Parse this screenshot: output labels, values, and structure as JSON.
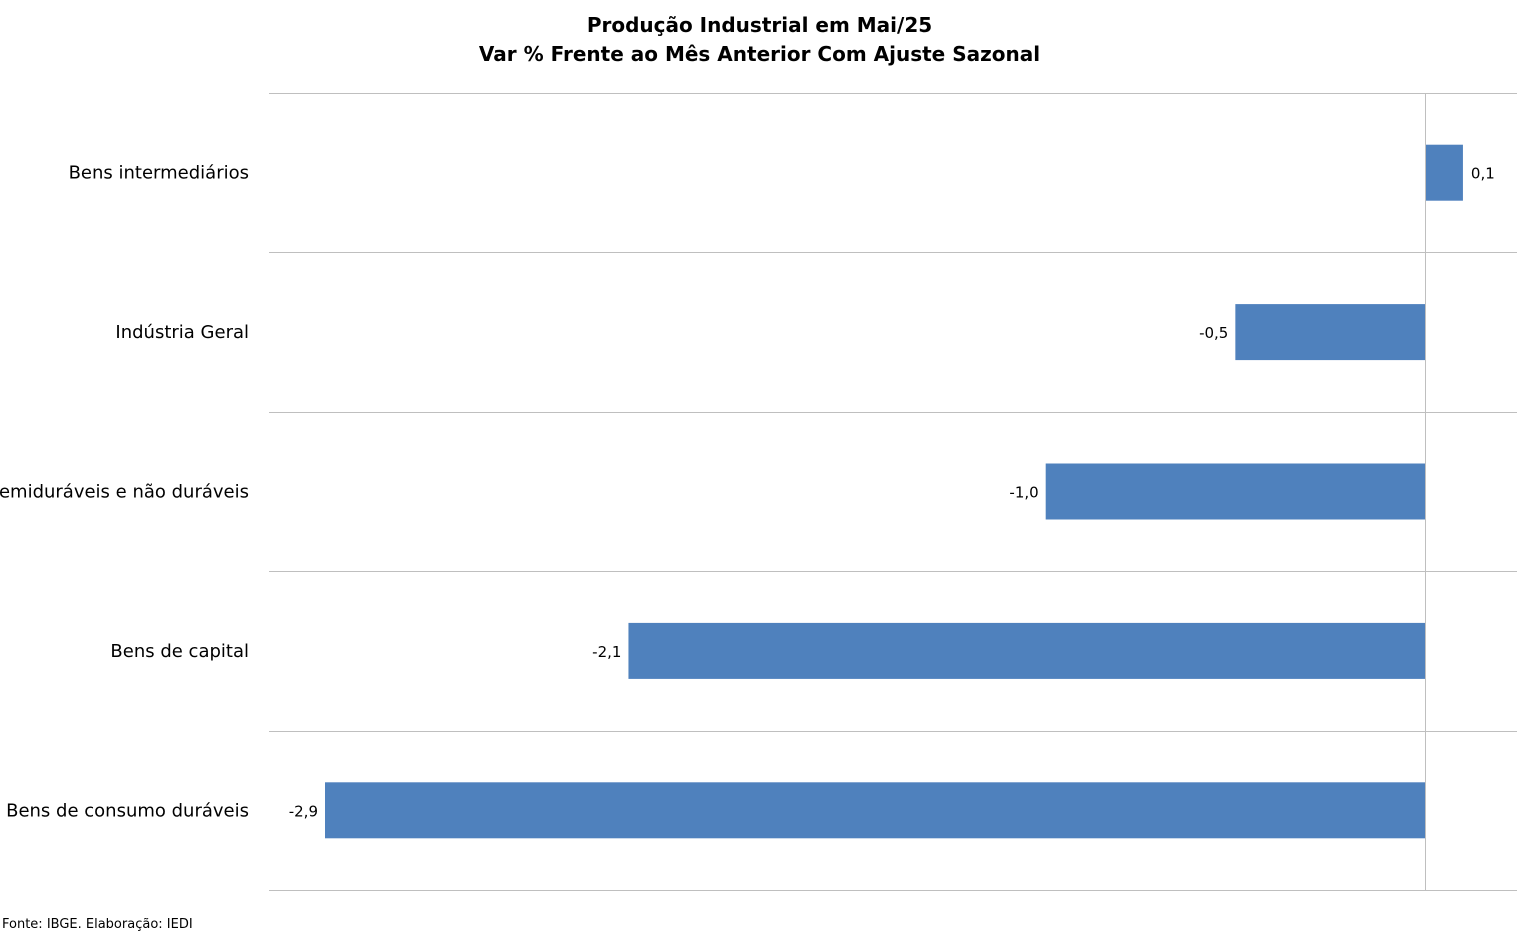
{
  "chart_data": {
    "type": "bar",
    "orientation": "horizontal",
    "title": "Produção Industrial em Mai/25",
    "subtitle": "Var % Frente ao Mês Anterior Com Ajuste Sazonal",
    "categories": [
      "Bens intermediários",
      "Indústria Geral",
      "Semiduráveis e não duráveis",
      "Bens de capital",
      "Bens de consumo duráveis"
    ],
    "values": [
      0.1,
      -0.5,
      -1.0,
      -2.1,
      -2.9
    ],
    "value_labels": [
      "0,1",
      "-0,5",
      "-1,0",
      "-2,1",
      "-2,9"
    ],
    "xlim": [
      -3.05,
      0.25
    ],
    "grid": true,
    "bar_color": "#4F81BD"
  },
  "source_note": "Fonte: IBGE. Elaboração: IEDI"
}
